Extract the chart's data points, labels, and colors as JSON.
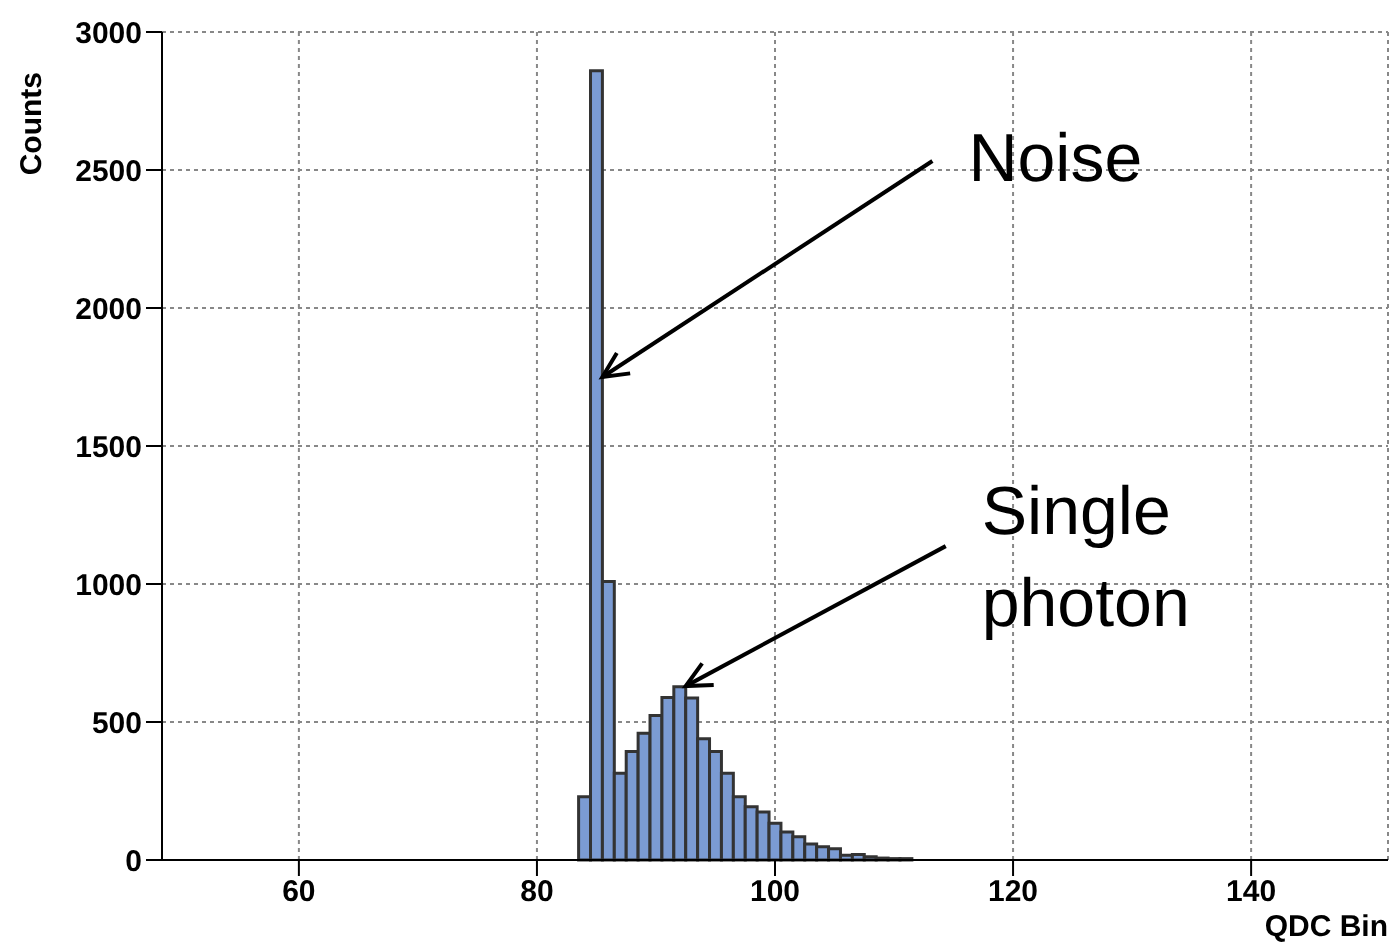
{
  "chart_data": {
    "type": "histogram",
    "xlabel": "QDC Bin",
    "ylabel": "Counts",
    "bins": [
      83.5,
      84.5,
      85.5,
      86.5,
      87.5,
      88.5,
      89.5,
      90.5,
      91.5,
      92.5,
      93.5,
      94.5,
      95.5,
      96.5,
      97.5,
      98.5,
      99.5,
      100.5,
      101.5,
      102.5,
      103.5,
      104.5,
      105.5,
      106.5,
      107.5,
      108.5,
      109.5,
      110.5,
      111.5
    ],
    "values": [
      229,
      2860,
      1009,
      314,
      393,
      459,
      524,
      589,
      628,
      587,
      439,
      393,
      314,
      229,
      193,
      174,
      133,
      101,
      84,
      58,
      48,
      41,
      17,
      20,
      12,
      7,
      5,
      5
    ],
    "color": "#7b9bd3",
    "xlim": [
      48.5,
      151.5
    ],
    "xticks": [
      60,
      80,
      100,
      120,
      140
    ],
    "ylim": [
      0,
      3000
    ],
    "yticks": [
      0,
      500,
      1000,
      1500,
      2000,
      2500,
      3000
    ],
    "grid": true,
    "annotations": [
      {
        "text": "Noise",
        "x": 85.5,
        "y": 1750
      },
      {
        "text": "Single photon",
        "x": 92.5,
        "y": 630
      }
    ]
  }
}
